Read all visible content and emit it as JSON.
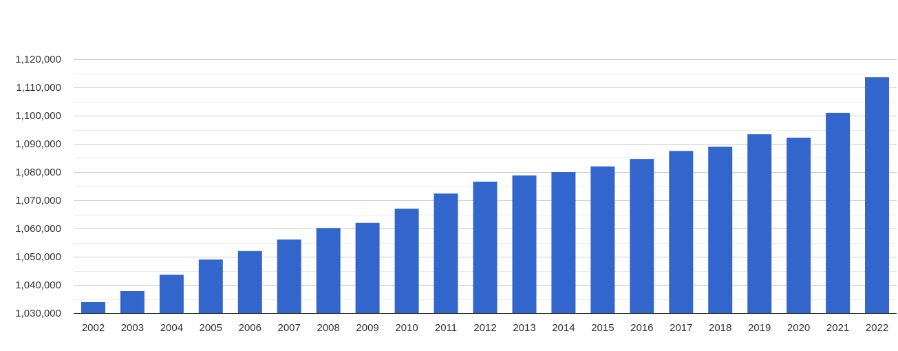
{
  "chart_data": {
    "type": "bar",
    "title": "",
    "xlabel": "",
    "ylabel": "",
    "categories": [
      "2002",
      "2003",
      "2004",
      "2005",
      "2006",
      "2007",
      "2008",
      "2009",
      "2010",
      "2011",
      "2012",
      "2013",
      "2014",
      "2015",
      "2016",
      "2017",
      "2018",
      "2019",
      "2020",
      "2021",
      "2022"
    ],
    "values": [
      1033900,
      1037800,
      1043600,
      1049000,
      1052000,
      1056100,
      1060200,
      1062000,
      1067000,
      1072400,
      1076600,
      1078800,
      1080000,
      1082000,
      1084600,
      1087500,
      1089000,
      1093400,
      1092200,
      1101000,
      1113600
    ],
    "ylim": [
      1030000,
      1120000
    ],
    "yticks": [
      1030000,
      1040000,
      1050000,
      1060000,
      1070000,
      1080000,
      1090000,
      1100000,
      1110000,
      1120000
    ],
    "ytick_labels": [
      "1,030,000",
      "1,040,000",
      "1,050,000",
      "1,060,000",
      "1,070,000",
      "1,080,000",
      "1,090,000",
      "1,100,000",
      "1,110,000",
      "1,120,000"
    ],
    "grid": true,
    "minor_grid": true,
    "bar_color": "#3366cc",
    "grid_color": "#cccccc",
    "minor_grid_color": "#ebebeb"
  }
}
